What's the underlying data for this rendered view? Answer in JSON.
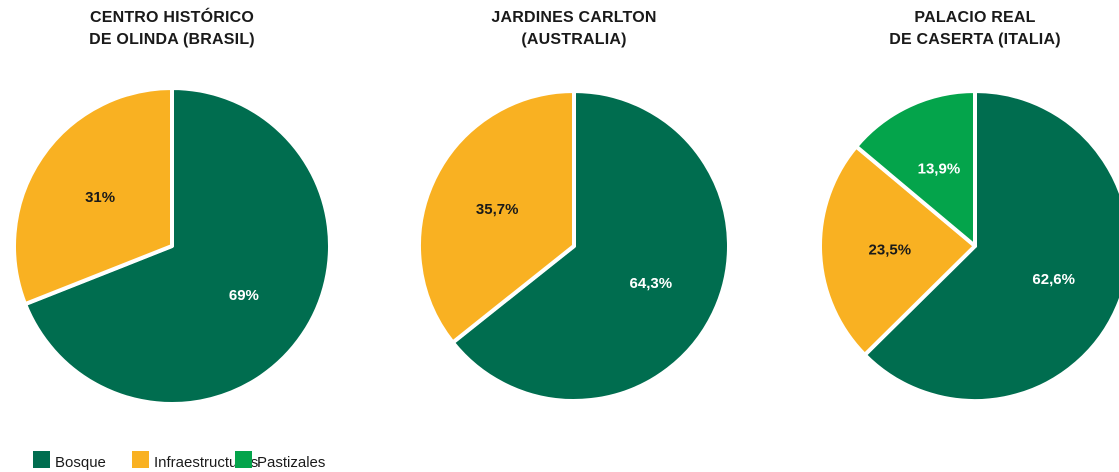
{
  "colors": {
    "bosque": "#006d4f",
    "infraestructuras": "#f9b122",
    "pastizales": "#04a44b"
  },
  "legend": [
    {
      "key": "bosque",
      "label": "Bosque"
    },
    {
      "key": "infraestructuras",
      "label": "Infraestructuras"
    },
    {
      "key": "pastizales",
      "label": "Pastizales"
    }
  ],
  "chart_data": [
    {
      "type": "pie",
      "title_lines": [
        "CENTRO HISTÓRICO",
        "DE OLINDA (BRASIL)"
      ],
      "slices": [
        {
          "key": "bosque",
          "value": 69,
          "label": "69%"
        },
        {
          "key": "infraestructuras",
          "value": 31,
          "label": "31%"
        }
      ]
    },
    {
      "type": "pie",
      "title_lines": [
        "JARDINES CARLTON",
        "(AUSTRALIA)"
      ],
      "slices": [
        {
          "key": "bosque",
          "value": 64.3,
          "label": "64,3%"
        },
        {
          "key": "infraestructuras",
          "value": 35.7,
          "label": "35,7%"
        }
      ]
    },
    {
      "type": "pie",
      "title_lines": [
        "PALACIO REAL",
        "DE CASERTA (ITALIA)"
      ],
      "slices": [
        {
          "key": "bosque",
          "value": 62.6,
          "label": "62,6%"
        },
        {
          "key": "infraestructuras",
          "value": 23.5,
          "label": "23,5%"
        },
        {
          "key": "pastizales",
          "value": 13.9,
          "label": "13,9%"
        }
      ]
    }
  ]
}
